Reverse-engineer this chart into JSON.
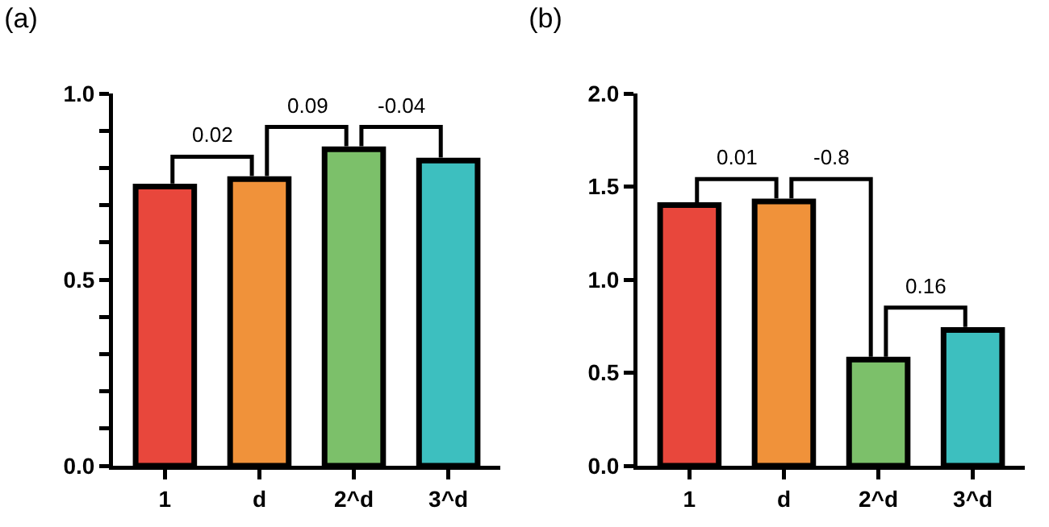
{
  "chart_data": [
    {
      "type": "bar",
      "title": "(a)",
      "categories": [
        "1",
        "d",
        "2^d",
        "3^d"
      ],
      "values": [
        0.75,
        0.77,
        0.85,
        0.82
      ],
      "colors": [
        "#e8473c",
        "#f0923a",
        "#7cc06a",
        "#3dbfbf"
      ],
      "ylim": [
        0,
        1
      ],
      "yticks": [
        {
          "value": 0,
          "label": "0.0"
        },
        {
          "value": 0.1,
          "label": null
        },
        {
          "value": 0.2,
          "label": null
        },
        {
          "value": 0.3,
          "label": null
        },
        {
          "value": 0.4,
          "label": null
        },
        {
          "value": 0.5,
          "label": "0.5"
        },
        {
          "value": 0.6,
          "label": null
        },
        {
          "value": 0.7,
          "label": null
        },
        {
          "value": 0.8,
          "label": null
        },
        {
          "value": 0.9,
          "label": null
        },
        {
          "value": 1,
          "label": "1.0"
        }
      ],
      "annotations": [
        "0.02",
        "0.09",
        "-0.04"
      ]
    },
    {
      "type": "bar",
      "title": "(b)",
      "categories": [
        "1",
        "d",
        "2^d",
        "3^d"
      ],
      "values": [
        1.4,
        1.42,
        0.57,
        0.73
      ],
      "colors": [
        "#e8473c",
        "#f0923a",
        "#7cc06a",
        "#3dbfbf"
      ],
      "ylim": [
        0,
        2
      ],
      "yticks": [
        {
          "value": 0,
          "label": "0.0"
        },
        {
          "value": 0.5,
          "label": "0.5"
        },
        {
          "value": 1,
          "label": "1.0"
        },
        {
          "value": 1.5,
          "label": "1.5"
        },
        {
          "value": 2,
          "label": "2.0"
        }
      ],
      "annotations": [
        "0.01",
        "-0.8",
        "0.16"
      ]
    }
  ]
}
